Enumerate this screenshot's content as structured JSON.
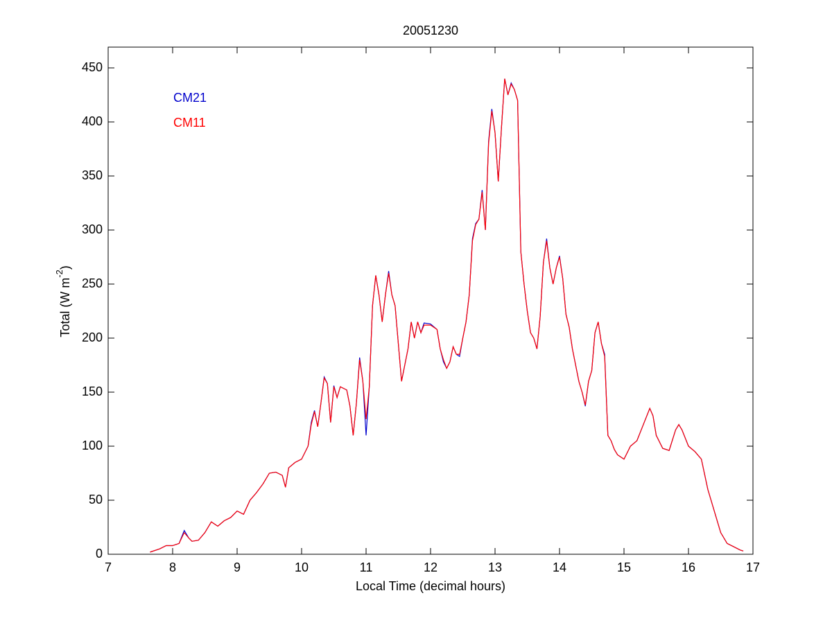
{
  "chart_data": {
    "type": "line",
    "title": "20051230",
    "xlabel": "Local Time (decimal hours)",
    "ylabel": [
      "Total (W m",
      "-2",
      ")"
    ],
    "x": [
      7.65,
      7.8,
      7.9,
      8.0,
      8.1,
      8.18,
      8.25,
      8.3,
      8.4,
      8.5,
      8.6,
      8.7,
      8.8,
      8.9,
      9.0,
      9.1,
      9.2,
      9.3,
      9.4,
      9.5,
      9.6,
      9.7,
      9.75,
      9.8,
      9.9,
      10.0,
      10.1,
      10.15,
      10.2,
      10.25,
      10.3,
      10.35,
      10.4,
      10.45,
      10.5,
      10.55,
      10.6,
      10.7,
      10.75,
      10.8,
      10.85,
      10.9,
      10.95,
      11.0,
      11.05,
      11.1,
      11.15,
      11.2,
      11.25,
      11.3,
      11.35,
      11.4,
      11.45,
      11.5,
      11.55,
      11.6,
      11.65,
      11.7,
      11.75,
      11.8,
      11.85,
      11.9,
      12.0,
      12.1,
      12.15,
      12.2,
      12.25,
      12.3,
      12.35,
      12.4,
      12.45,
      12.5,
      12.55,
      12.6,
      12.65,
      12.7,
      12.75,
      12.8,
      12.85,
      12.9,
      12.95,
      13.0,
      13.05,
      13.1,
      13.15,
      13.2,
      13.25,
      13.3,
      13.35,
      13.4,
      13.45,
      13.5,
      13.55,
      13.6,
      13.65,
      13.7,
      13.75,
      13.8,
      13.85,
      13.9,
      13.95,
      14.0,
      14.05,
      14.1,
      14.15,
      14.2,
      14.3,
      14.35,
      14.4,
      14.45,
      14.5,
      14.55,
      14.6,
      14.65,
      14.7,
      14.75,
      14.8,
      14.85,
      14.9,
      15.0,
      15.1,
      15.2,
      15.3,
      15.4,
      15.45,
      15.5,
      15.6,
      15.7,
      15.8,
      15.85,
      15.9,
      16.0,
      16.1,
      16.2,
      16.3,
      16.4,
      16.5,
      16.6,
      16.7,
      16.8,
      16.85
    ],
    "series": [
      {
        "name": "CM21",
        "color": "#0000cc",
        "values": [
          2,
          5,
          8,
          8,
          10,
          22,
          15,
          12,
          13,
          20,
          30,
          26,
          31,
          34,
          40,
          37,
          50,
          57,
          65,
          75,
          76,
          73,
          62,
          80,
          85,
          88,
          100,
          122,
          133,
          118,
          140,
          164,
          158,
          122,
          156,
          145,
          155,
          152,
          137,
          110,
          140,
          182,
          160,
          110,
          155,
          230,
          258,
          240,
          215,
          240,
          262,
          240,
          230,
          195,
          160,
          175,
          190,
          215,
          200,
          215,
          205,
          214,
          213,
          208,
          190,
          178,
          172,
          178,
          192,
          185,
          183,
          200,
          215,
          240,
          292,
          306,
          310,
          337,
          300,
          382,
          412,
          390,
          345,
          395,
          440,
          425,
          436,
          430,
          420,
          280,
          250,
          225,
          205,
          200,
          190,
          220,
          270,
          292,
          265,
          250,
          265,
          276,
          255,
          222,
          210,
          190,
          160,
          150,
          137,
          160,
          170,
          205,
          215,
          195,
          185,
          110,
          105,
          97,
          92,
          88,
          100,
          105,
          120,
          135,
          128,
          110,
          98,
          96,
          115,
          120,
          115,
          100,
          95,
          88,
          60,
          40,
          20,
          10,
          7,
          4,
          3
        ]
      },
      {
        "name": "CM11",
        "color": "#ff0000",
        "values": [
          2,
          5,
          8,
          8,
          10,
          20,
          15,
          12,
          13,
          20,
          30,
          26,
          31,
          34,
          40,
          37,
          50,
          57,
          65,
          75,
          76,
          73,
          62,
          80,
          85,
          88,
          100,
          120,
          132,
          118,
          140,
          163,
          158,
          122,
          155,
          145,
          155,
          152,
          137,
          110,
          140,
          180,
          160,
          125,
          155,
          230,
          258,
          240,
          215,
          240,
          260,
          240,
          230,
          195,
          160,
          175,
          190,
          215,
          200,
          215,
          205,
          212,
          212,
          208,
          190,
          180,
          172,
          178,
          192,
          185,
          185,
          200,
          215,
          240,
          290,
          305,
          310,
          335,
          300,
          380,
          410,
          390,
          345,
          395,
          440,
          425,
          435,
          430,
          420,
          280,
          250,
          225,
          205,
          200,
          190,
          220,
          270,
          290,
          265,
          250,
          265,
          275,
          255,
          222,
          210,
          190,
          160,
          150,
          138,
          160,
          170,
          205,
          215,
          195,
          183,
          110,
          105,
          97,
          92,
          88,
          100,
          105,
          120,
          135,
          128,
          110,
          98,
          96,
          115,
          120,
          115,
          100,
          95,
          88,
          60,
          40,
          20,
          10,
          7,
          4,
          3
        ]
      }
    ],
    "xlim": [
      7,
      17
    ],
    "xticks": [
      7,
      8,
      9,
      10,
      11,
      12,
      13,
      14,
      15,
      16,
      17
    ],
    "ylim": [
      0,
      450
    ],
    "yticks": [
      0,
      50,
      100,
      150,
      200,
      250,
      300,
      350,
      400,
      450
    ],
    "legend": "upper left",
    "grid": false
  }
}
